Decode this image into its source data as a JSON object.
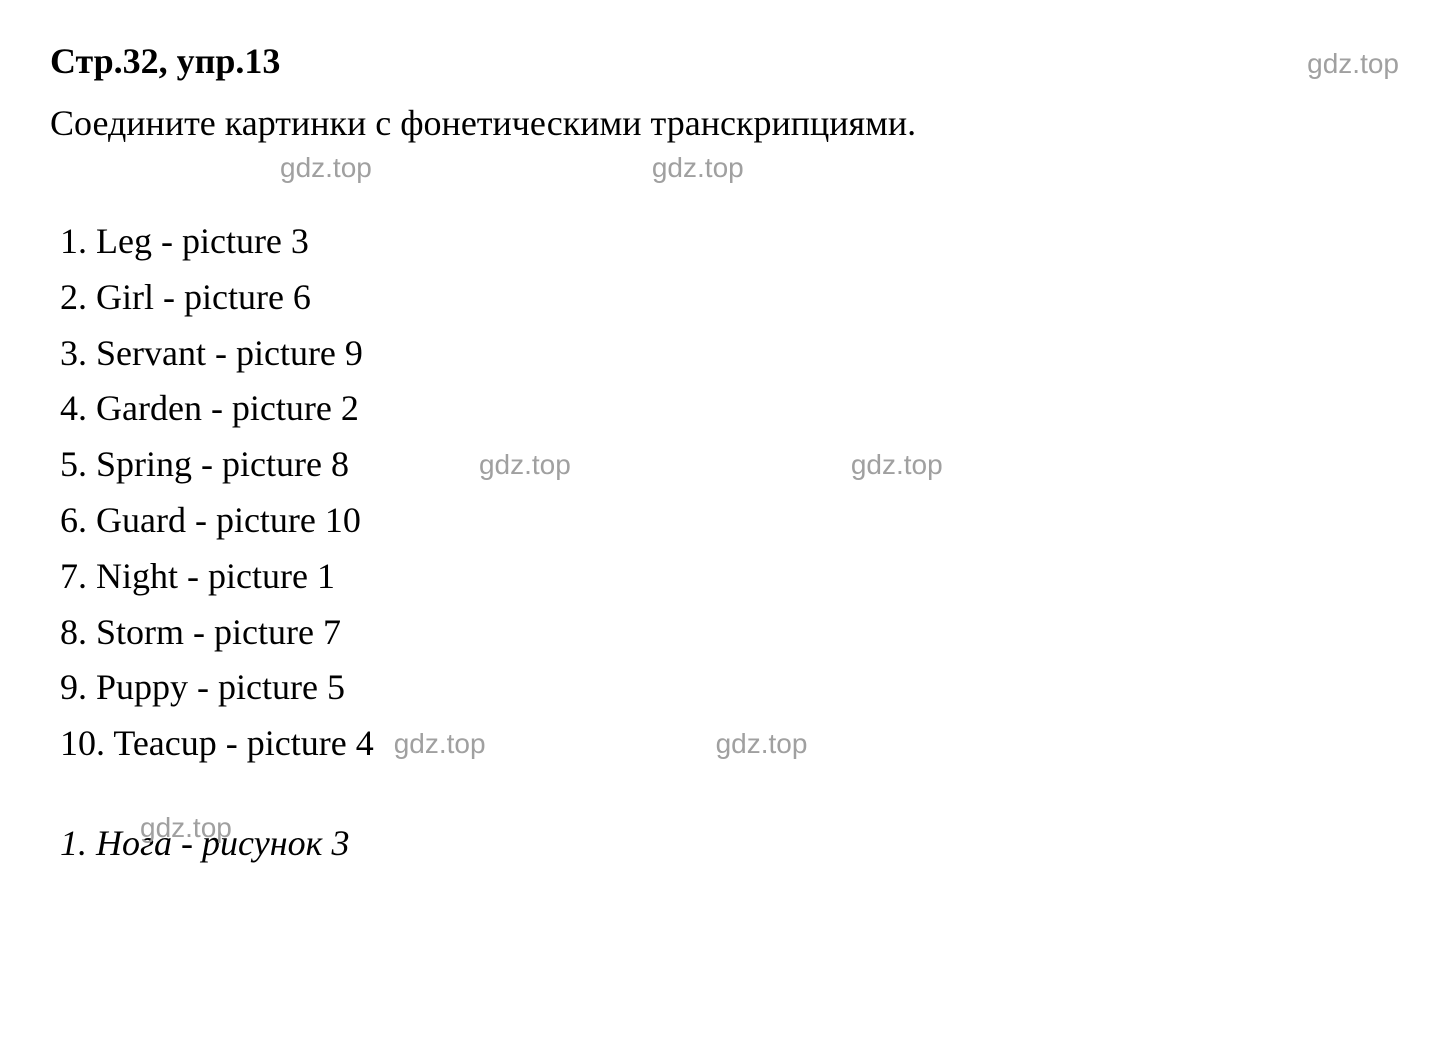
{
  "header": {
    "title": "Стр.32, упр.13",
    "watermark": "gdz.top"
  },
  "instruction": "Соедините картинки с фонетическими транскрипциями.",
  "watermark_text": "gdz.top",
  "items": [
    "1. Leg - picture 3",
    "2. Girl - picture 6",
    "3. Servant - picture 9",
    "4. Garden - picture 2",
    "5. Spring - picture 8",
    "6. Guard - picture 10",
    "7. Night - picture 1",
    "8. Storm - picture 7",
    "9. Puppy - picture 5",
    "10. Teacup - picture 4"
  ],
  "footer": {
    "watermark": "gdz.top",
    "text": "1. Нога - рисунок 3"
  },
  "styling": {
    "background_color": "#ffffff",
    "text_color": "#000000",
    "watermark_color": "#a0a0a0",
    "title_fontsize": 36,
    "body_fontsize": 36,
    "watermark_fontsize": 28,
    "font_family": "Times New Roman",
    "watermark_font_family": "Arial"
  }
}
